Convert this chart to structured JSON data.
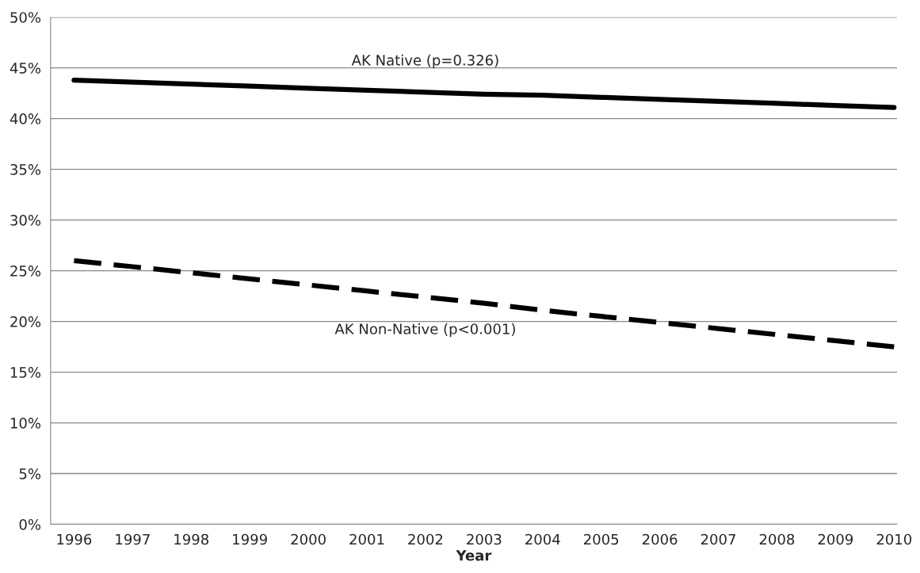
{
  "chart_data": {
    "type": "line",
    "xlabel": "Year",
    "categories": [
      "1996",
      "1997",
      "1998",
      "1999",
      "2000",
      "2001",
      "2002",
      "2003",
      "2004",
      "2005",
      "2006",
      "2007",
      "2008",
      "2009",
      "2010"
    ],
    "series": [
      {
        "name": "AK Native (p=0.326)",
        "color": "#000000",
        "line_style": "solid",
        "values": [
          43.8,
          43.6,
          43.4,
          43.2,
          43.0,
          42.8,
          42.6,
          42.4,
          42.3,
          42.1,
          41.9,
          41.7,
          41.5,
          41.3,
          41.1
        ]
      },
      {
        "name": "AK Non-Native (p<0.001)",
        "color": "#000000",
        "line_style": "dashed",
        "values": [
          26.0,
          25.4,
          24.8,
          24.2,
          23.6,
          23.0,
          22.4,
          21.8,
          21.1,
          20.5,
          19.9,
          19.3,
          18.7,
          18.1,
          17.5
        ]
      }
    ],
    "ylim": [
      0,
      50
    ],
    "yticks": [
      {
        "value": 0,
        "label": "0%"
      },
      {
        "value": 5,
        "label": "5%"
      },
      {
        "value": 10,
        "label": "10%"
      },
      {
        "value": 15,
        "label": "15%"
      },
      {
        "value": 20,
        "label": "20%"
      },
      {
        "value": 25,
        "label": "25%"
      },
      {
        "value": 30,
        "label": "30%"
      },
      {
        "value": 35,
        "label": "35%"
      },
      {
        "value": 40,
        "label": "40%"
      },
      {
        "value": 45,
        "label": "45%"
      },
      {
        "value": 50,
        "label": "50%"
      }
    ],
    "grid": "y",
    "legend": false,
    "marker": "none"
  }
}
